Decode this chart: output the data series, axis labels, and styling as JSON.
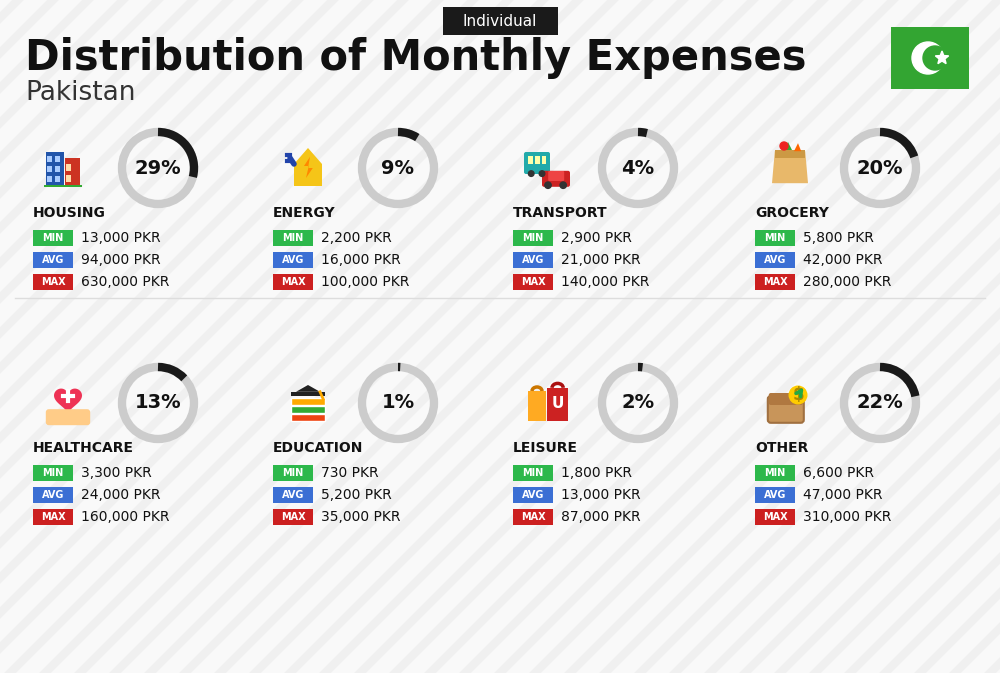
{
  "title": "Distribution of Monthly Expenses",
  "subtitle": "Pakistan",
  "tag": "Individual",
  "bg_color": "#f0f0f0",
  "categories": [
    {
      "name": "HOUSING",
      "pct": 29,
      "min_val": "13,000 PKR",
      "avg_val": "94,000 PKR",
      "max_val": "630,000 PKR",
      "col": 0,
      "row": 0
    },
    {
      "name": "ENERGY",
      "pct": 9,
      "min_val": "2,200 PKR",
      "avg_val": "16,000 PKR",
      "max_val": "100,000 PKR",
      "col": 1,
      "row": 0
    },
    {
      "name": "TRANSPORT",
      "pct": 4,
      "min_val": "2,900 PKR",
      "avg_val": "21,000 PKR",
      "max_val": "140,000 PKR",
      "col": 2,
      "row": 0
    },
    {
      "name": "GROCERY",
      "pct": 20,
      "min_val": "5,800 PKR",
      "avg_val": "42,000 PKR",
      "max_val": "280,000 PKR",
      "col": 3,
      "row": 0
    },
    {
      "name": "HEALTHCARE",
      "pct": 13,
      "min_val": "3,300 PKR",
      "avg_val": "24,000 PKR",
      "max_val": "160,000 PKR",
      "col": 0,
      "row": 1
    },
    {
      "name": "EDUCATION",
      "pct": 1,
      "min_val": "730 PKR",
      "avg_val": "5,200 PKR",
      "max_val": "35,000 PKR",
      "col": 1,
      "row": 1
    },
    {
      "name": "LEISURE",
      "pct": 2,
      "min_val": "1,800 PKR",
      "avg_val": "13,000 PKR",
      "max_val": "87,000 PKR",
      "col": 2,
      "row": 1
    },
    {
      "name": "OTHER",
      "pct": 22,
      "min_val": "6,600 PKR",
      "avg_val": "47,000 PKR",
      "max_val": "310,000 PKR",
      "col": 3,
      "row": 1
    }
  ],
  "min_color": "#2db84b",
  "avg_color": "#3b6fd4",
  "max_color": "#cc2020",
  "label_text_color": "#ffffff",
  "value_text_color": "#111111",
  "circle_gray_color": "#cccccc",
  "circle_dark_color": "#1a1a1a",
  "title_color": "#111111",
  "subtitle_color": "#333333",
  "tag_bg_color": "#1a1a1a",
  "tag_text_color": "#ffffff",
  "flag_green": "#33a532",
  "stripe_color": "#e4e4e4"
}
